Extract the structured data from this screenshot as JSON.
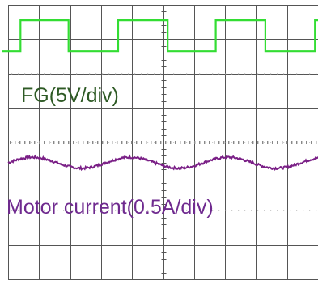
{
  "chart_data": {
    "type": "line",
    "title": "",
    "xlabel": "",
    "ylabel": "",
    "grid": true,
    "grid_divisions": {
      "x": 10,
      "y": 8
    },
    "xlim": [
      0,
      10
    ],
    "ylim": [
      -4,
      4
    ],
    "series": [
      {
        "name": "FG(5V/div)",
        "color": "#33dd33",
        "x": [
          -0.2,
          0.4,
          0.4,
          1.95,
          1.95,
          3.55,
          3.55,
          5.15,
          5.15,
          6.7,
          6.7,
          8.3,
          8.3,
          9.9,
          9.9,
          10.0
        ],
        "y": [
          2.65,
          2.65,
          3.55,
          3.55,
          2.65,
          2.65,
          3.55,
          3.55,
          2.65,
          2.65,
          3.55,
          3.55,
          2.65,
          2.65,
          3.55,
          3.55
        ]
      },
      {
        "name": "Motor current(0.5A/div)",
        "color": "#7a1f86",
        "center": -0.6,
        "amplitude": 0.16,
        "period": 3.15,
        "phase": 0.0
      }
    ]
  },
  "labels": {
    "fg": "FG(5V/div)",
    "current": "Motor current(0.5A/div)"
  },
  "colors": {
    "background": "#ffffff",
    "grid": "#555555",
    "fg_trace": "#33dd33",
    "current_trace": "#7a1f86",
    "fg_label": "#2e5a25",
    "current_label": "#6f2a8f"
  }
}
